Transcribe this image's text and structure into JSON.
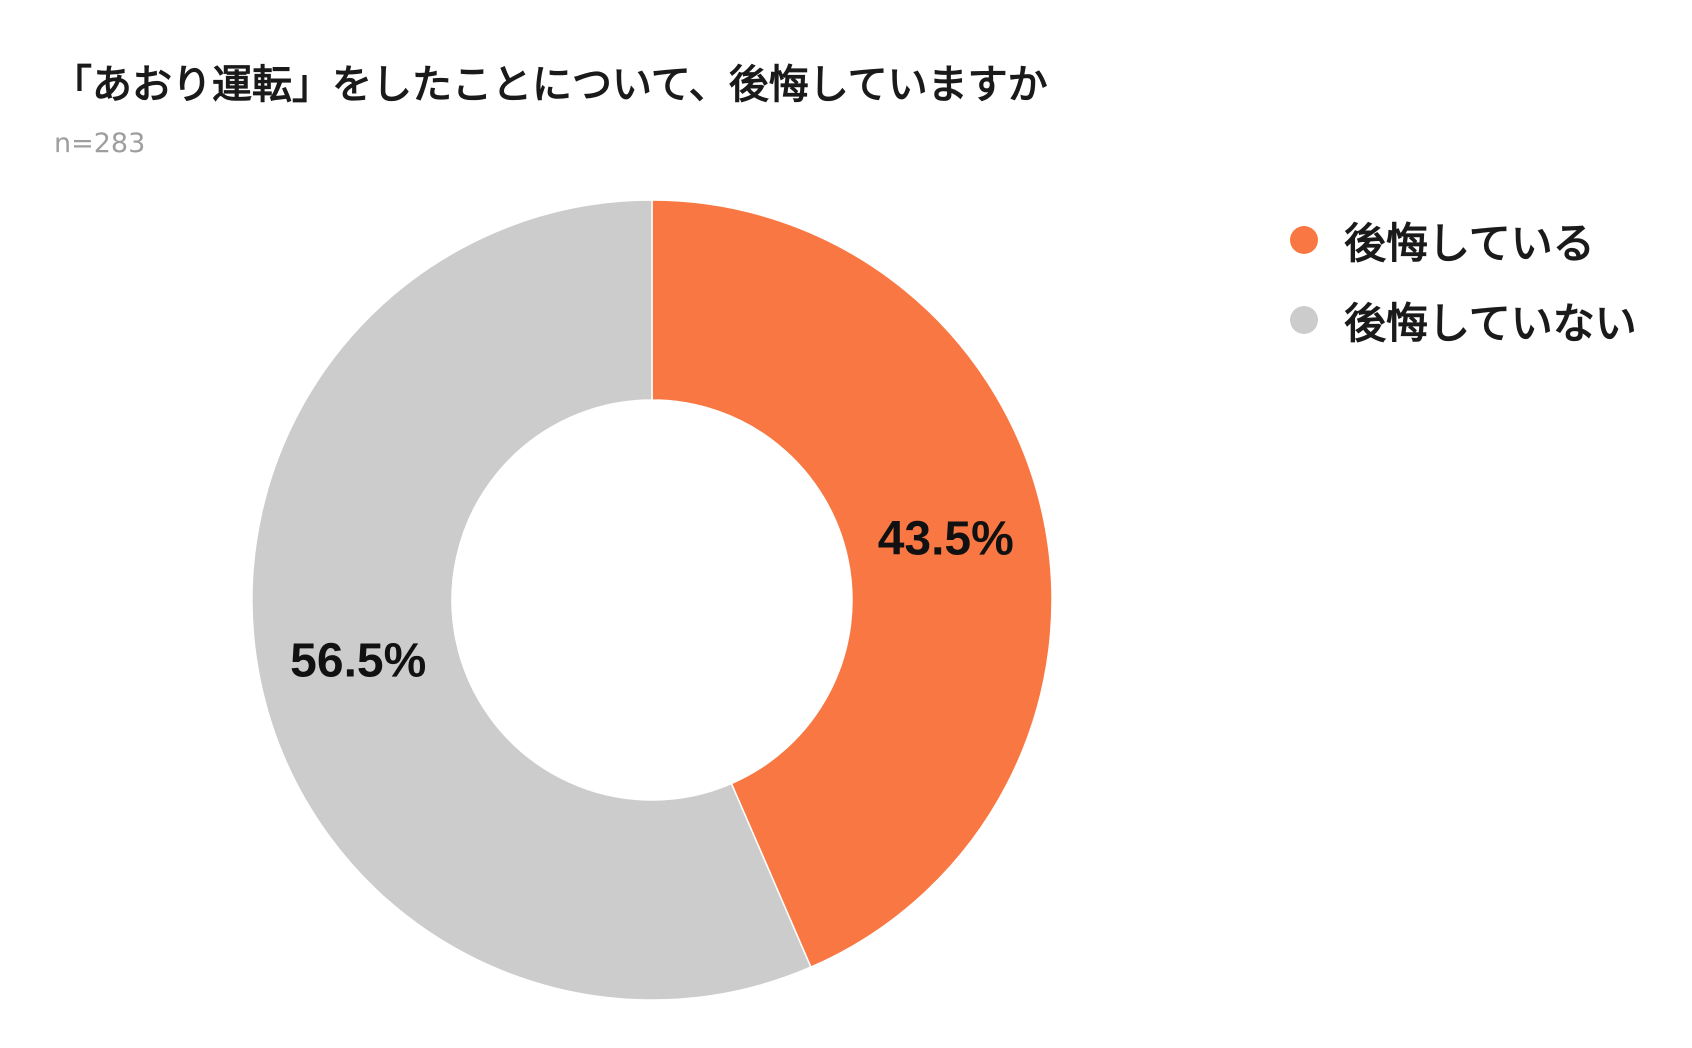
{
  "chart_data": {
    "type": "pie",
    "donut": true,
    "title": "「あおり運転」をしたことについて、後悔していますか",
    "subtitle": "n=283",
    "categories": [
      "後悔している",
      "後悔していない"
    ],
    "values": [
      43.5,
      56.5
    ],
    "labels": [
      "43.5%",
      "56.5%"
    ],
    "colors": [
      "#F97742",
      "#CCCCCC"
    ],
    "legend_position": "right"
  }
}
